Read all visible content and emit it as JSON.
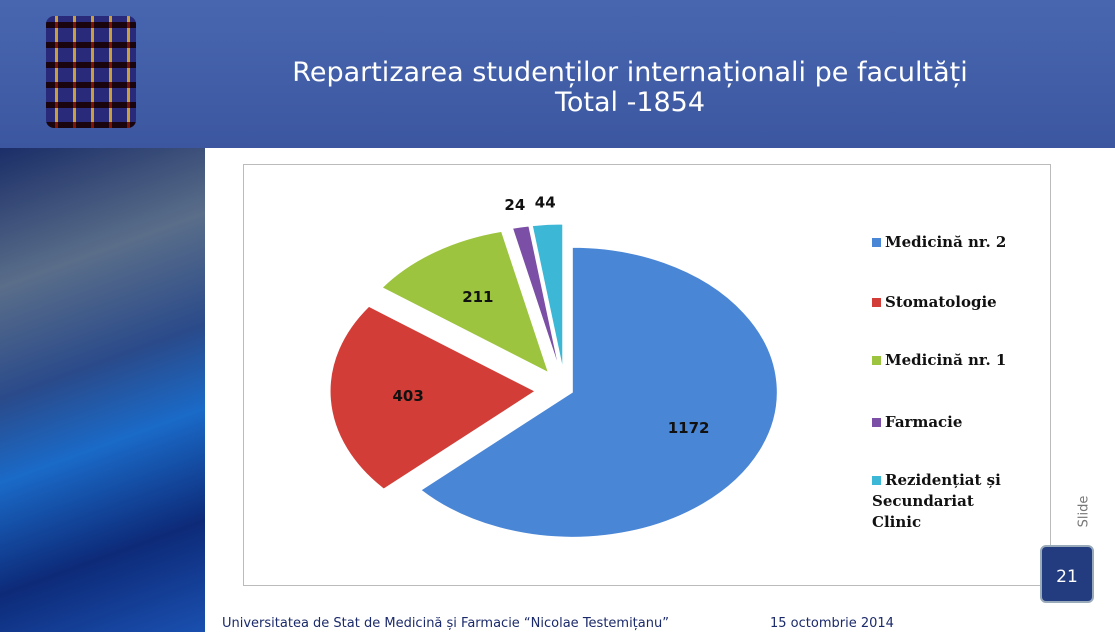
{
  "chart_data": {
    "type": "pie",
    "title": "Repartizarea studenților internaționali pe facultăți",
    "subtitle": "Total -1854",
    "categories": [
      "Medicină nr. 2",
      "Stomatologie",
      "Medicină nr. 1",
      "Farmacie",
      "Rezidențiat și Secundariat Clinic"
    ],
    "values": [
      1172,
      403,
      211,
      24,
      44
    ],
    "colors": [
      "#4a86d6",
      "#d23d37",
      "#9cc43e",
      "#7b4fa6",
      "#3cb7d6"
    ],
    "legend": "right"
  },
  "footer": {
    "institution": "Universitatea de Stat de Medicină și Farmacie “Nicolae Testemițanu”",
    "date": "15 octombrie 2014",
    "slide_label": "Slide",
    "slide_number": 21
  }
}
